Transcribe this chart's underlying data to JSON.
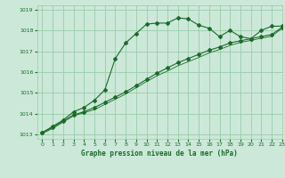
{
  "xlabel": "Graphe pression niveau de la mer (hPa)",
  "xlim": [
    -0.5,
    23
  ],
  "ylim": [
    1012.8,
    1019.2
  ],
  "yticks": [
    1013,
    1014,
    1015,
    1016,
    1017,
    1018,
    1019
  ],
  "xticks": [
    0,
    1,
    2,
    3,
    4,
    5,
    6,
    7,
    8,
    9,
    10,
    11,
    12,
    13,
    14,
    15,
    16,
    17,
    18,
    19,
    20,
    21,
    22,
    23
  ],
  "bg_color": "#cce8d8",
  "grid_color": "#99ccaa",
  "line_color": "#1a6b2a",
  "line1_x": [
    0,
    1,
    2,
    3,
    4,
    5,
    6,
    7,
    8,
    9,
    10,
    11,
    12,
    13,
    14,
    15,
    16,
    17,
    18,
    19,
    20,
    21,
    22,
    23
  ],
  "line1_y": [
    1013.1,
    1013.4,
    1013.7,
    1014.1,
    1014.3,
    1014.65,
    1015.15,
    1016.65,
    1017.4,
    1017.85,
    1018.3,
    1018.35,
    1018.35,
    1018.6,
    1018.55,
    1018.25,
    1018.1,
    1017.7,
    1018.0,
    1017.7,
    1017.6,
    1018.0,
    1018.2,
    1018.2
  ],
  "line2_x": [
    0,
    1,
    2,
    3,
    4,
    5,
    6,
    7,
    8,
    9,
    10,
    11,
    12,
    13,
    14,
    15,
    16,
    17,
    18,
    19,
    20,
    21,
    22,
    23
  ],
  "line2_y": [
    1013.1,
    1013.35,
    1013.65,
    1013.95,
    1014.1,
    1014.3,
    1014.55,
    1014.8,
    1015.05,
    1015.35,
    1015.65,
    1015.95,
    1016.2,
    1016.45,
    1016.65,
    1016.85,
    1017.05,
    1017.2,
    1017.4,
    1017.5,
    1017.6,
    1017.7,
    1017.8,
    1018.15
  ],
  "line3_x": [
    0,
    1,
    2,
    3,
    4,
    5,
    6,
    7,
    8,
    9,
    10,
    11,
    12,
    13,
    14,
    15,
    16,
    17,
    18,
    19,
    20,
    21,
    22,
    23
  ],
  "line3_y": [
    1013.05,
    1013.3,
    1013.6,
    1013.9,
    1014.05,
    1014.2,
    1014.45,
    1014.7,
    1014.95,
    1015.25,
    1015.55,
    1015.82,
    1016.05,
    1016.3,
    1016.5,
    1016.7,
    1016.92,
    1017.08,
    1017.28,
    1017.42,
    1017.52,
    1017.62,
    1017.72,
    1018.1
  ]
}
